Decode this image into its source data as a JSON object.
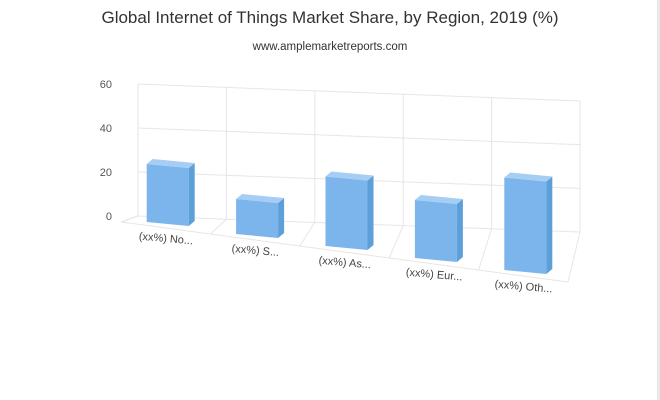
{
  "chart_data": {
    "type": "bar",
    "title": "Global Internet of Things Market Share, by Region, 2019 (%)",
    "subtitle": "www.amplemarketreports.com",
    "categories": [
      "(xx%) No...",
      "(xx%) S...",
      "(xx%) As...",
      "(xx%) Eur...",
      "(xx%) Oth..."
    ],
    "values": [
      20,
      10,
      25,
      20,
      35
    ],
    "ylim": [
      0,
      60
    ],
    "yticks": [
      0,
      20,
      40,
      60
    ],
    "grid": true,
    "style": "3d",
    "colors": {
      "bar_front": "#7cb5ec",
      "bar_side": "#5d9fd9",
      "bar_top": "#a6cdf3",
      "grid": "#e6e6e6"
    }
  }
}
